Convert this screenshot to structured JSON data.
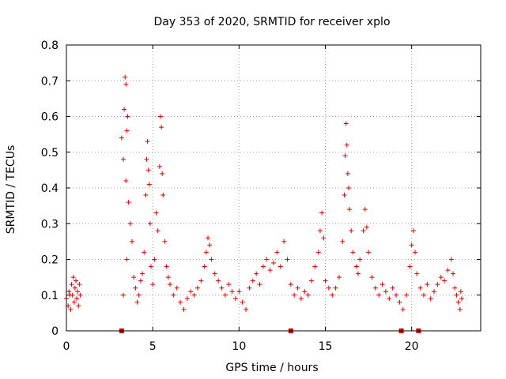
{
  "chart_data": {
    "type": "scatter",
    "title": "Day 353 of 2020, SRMTID for receiver xplo",
    "xlabel": "GPS time / hours",
    "ylabel": "SRMTID / TECUs",
    "xlim": [
      0,
      24
    ],
    "ylim": [
      0,
      0.8
    ],
    "xticks": [
      0,
      5,
      10,
      15,
      20
    ],
    "yticks": [
      0,
      0.1,
      0.2,
      0.3,
      0.4,
      0.5,
      0.6,
      0.7,
      0.8
    ],
    "xtick_labels": [
      "0",
      "5",
      "10",
      "15",
      "20"
    ],
    "ytick_labels": [
      "0",
      "0.1",
      "0.2",
      "0.3",
      "0.4",
      "0.5",
      "0.6",
      "0.7",
      "0.8"
    ],
    "grid": true,
    "marker": "+",
    "color": "#dd0000",
    "series": [
      {
        "name": "SRMTID",
        "points": [
          [
            0.0,
            0.09
          ],
          [
            0.1,
            0.07
          ],
          [
            0.15,
            0.11
          ],
          [
            0.2,
            0.1
          ],
          [
            0.25,
            0.06
          ],
          [
            0.3,
            0.13
          ],
          [
            0.35,
            0.1
          ],
          [
            0.4,
            0.15
          ],
          [
            0.45,
            0.08
          ],
          [
            0.5,
            0.12
          ],
          [
            0.55,
            0.14
          ],
          [
            0.6,
            0.09
          ],
          [
            0.65,
            0.11
          ],
          [
            0.7,
            0.07
          ],
          [
            0.75,
            0.13
          ],
          [
            0.8,
            0.1
          ],
          [
            3.2,
            0.54
          ],
          [
            3.3,
            0.48
          ],
          [
            3.35,
            0.62
          ],
          [
            3.4,
            0.71
          ],
          [
            3.45,
            0.69
          ],
          [
            3.5,
            0.56
          ],
          [
            3.55,
            0.6
          ],
          [
            3.45,
            0.42
          ],
          [
            3.6,
            0.36
          ],
          [
            3.7,
            0.3
          ],
          [
            3.8,
            0.25
          ],
          [
            3.5,
            0.2
          ],
          [
            3.9,
            0.15
          ],
          [
            3.3,
            0.1
          ],
          [
            4.0,
            0.12
          ],
          [
            4.1,
            0.08
          ],
          [
            4.2,
            0.1
          ],
          [
            4.3,
            0.14
          ],
          [
            4.4,
            0.16
          ],
          [
            4.5,
            0.22
          ],
          [
            4.6,
            0.38
          ],
          [
            4.65,
            0.48
          ],
          [
            4.7,
            0.53
          ],
          [
            4.75,
            0.45
          ],
          [
            4.8,
            0.41
          ],
          [
            4.85,
            0.3
          ],
          [
            4.9,
            0.18
          ],
          [
            5.0,
            0.13
          ],
          [
            5.1,
            0.2
          ],
          [
            5.2,
            0.33
          ],
          [
            5.3,
            0.28
          ],
          [
            5.4,
            0.46
          ],
          [
            5.45,
            0.6
          ],
          [
            5.5,
            0.57
          ],
          [
            5.55,
            0.44
          ],
          [
            5.6,
            0.38
          ],
          [
            5.7,
            0.25
          ],
          [
            5.8,
            0.18
          ],
          [
            5.9,
            0.15
          ],
          [
            6.0,
            0.13
          ],
          [
            6.2,
            0.1
          ],
          [
            6.4,
            0.12
          ],
          [
            6.6,
            0.08
          ],
          [
            6.8,
            0.06
          ],
          [
            7.0,
            0.09
          ],
          [
            7.2,
            0.11
          ],
          [
            7.4,
            0.1
          ],
          [
            7.6,
            0.12
          ],
          [
            7.8,
            0.14
          ],
          [
            8.0,
            0.18
          ],
          [
            8.1,
            0.22
          ],
          [
            8.2,
            0.26
          ],
          [
            8.3,
            0.24
          ],
          [
            8.4,
            0.2
          ],
          [
            8.6,
            0.16
          ],
          [
            8.8,
            0.14
          ],
          [
            9.0,
            0.12
          ],
          [
            9.2,
            0.1
          ],
          [
            9.4,
            0.13
          ],
          [
            9.6,
            0.11
          ],
          [
            9.8,
            0.09
          ],
          [
            10.0,
            0.11
          ],
          [
            10.2,
            0.08
          ],
          [
            10.4,
            0.06
          ],
          [
            10.6,
            0.12
          ],
          [
            10.8,
            0.14
          ],
          [
            11.0,
            0.16
          ],
          [
            11.2,
            0.13
          ],
          [
            11.4,
            0.18
          ],
          [
            11.6,
            0.2
          ],
          [
            11.8,
            0.17
          ],
          [
            12.0,
            0.19
          ],
          [
            12.2,
            0.22
          ],
          [
            12.4,
            0.18
          ],
          [
            12.6,
            0.25
          ],
          [
            12.8,
            0.2
          ],
          [
            13.0,
            0.13
          ],
          [
            13.2,
            0.1
          ],
          [
            13.4,
            0.12
          ],
          [
            13.6,
            0.09
          ],
          [
            13.8,
            0.11
          ],
          [
            14.0,
            0.1
          ],
          [
            14.2,
            0.14
          ],
          [
            14.4,
            0.18
          ],
          [
            14.6,
            0.22
          ],
          [
            14.7,
            0.28
          ],
          [
            14.8,
            0.33
          ],
          [
            14.9,
            0.26
          ],
          [
            15.0,
            0.14
          ],
          [
            15.2,
            0.12
          ],
          [
            15.4,
            0.1
          ],
          [
            15.6,
            0.12
          ],
          [
            15.8,
            0.15
          ],
          [
            16.0,
            0.25
          ],
          [
            16.1,
            0.38
          ],
          [
            16.15,
            0.49
          ],
          [
            16.2,
            0.58
          ],
          [
            16.25,
            0.52
          ],
          [
            16.3,
            0.44
          ],
          [
            16.35,
            0.4
          ],
          [
            16.4,
            0.34
          ],
          [
            16.5,
            0.28
          ],
          [
            16.6,
            0.22
          ],
          [
            16.8,
            0.18
          ],
          [
            16.9,
            0.16
          ],
          [
            17.0,
            0.2
          ],
          [
            17.2,
            0.28
          ],
          [
            17.3,
            0.34
          ],
          [
            17.4,
            0.29
          ],
          [
            17.5,
            0.22
          ],
          [
            17.7,
            0.15
          ],
          [
            17.9,
            0.12
          ],
          [
            18.1,
            0.1
          ],
          [
            18.3,
            0.13
          ],
          [
            18.5,
            0.11
          ],
          [
            18.7,
            0.09
          ],
          [
            18.9,
            0.12
          ],
          [
            19.1,
            0.1
          ],
          [
            19.3,
            0.08
          ],
          [
            19.5,
            0.06
          ],
          [
            19.7,
            0.1
          ],
          [
            19.9,
            0.18
          ],
          [
            20.0,
            0.24
          ],
          [
            20.1,
            0.28
          ],
          [
            20.2,
            0.22
          ],
          [
            20.3,
            0.16
          ],
          [
            20.5,
            0.12
          ],
          [
            20.7,
            0.1
          ],
          [
            20.9,
            0.13
          ],
          [
            21.1,
            0.09
          ],
          [
            21.3,
            0.11
          ],
          [
            21.5,
            0.13
          ],
          [
            21.7,
            0.15
          ],
          [
            21.9,
            0.14
          ],
          [
            22.1,
            0.17
          ],
          [
            22.3,
            0.2
          ],
          [
            22.4,
            0.16
          ],
          [
            22.5,
            0.12
          ],
          [
            22.6,
            0.1
          ],
          [
            22.7,
            0.08
          ],
          [
            22.8,
            0.06
          ],
          [
            22.85,
            0.11
          ],
          [
            22.9,
            0.09
          ]
        ]
      },
      {
        "name": "marker",
        "marker": "square",
        "points": [
          [
            3.2,
            0
          ],
          [
            13.0,
            0
          ],
          [
            19.4,
            0
          ],
          [
            20.4,
            0
          ]
        ]
      }
    ]
  }
}
